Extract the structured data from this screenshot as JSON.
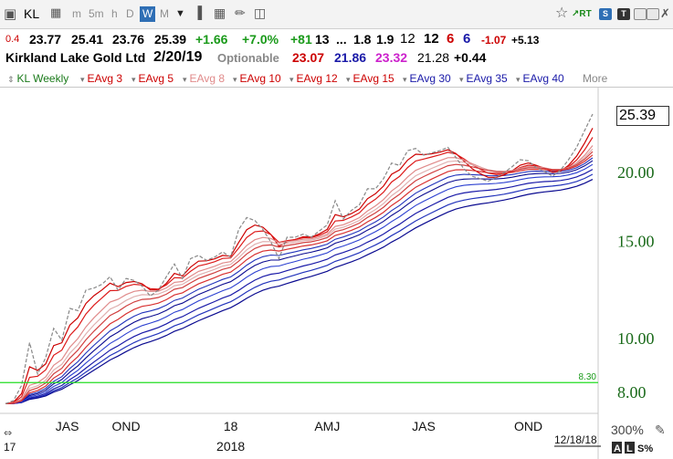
{
  "toolbar": {
    "symbol": "KL",
    "periods": [
      "m",
      "5m",
      "h",
      "D",
      "W",
      "M"
    ],
    "active_period": "W",
    "right_icons": [
      "star-icon",
      "rt-icon",
      "s-icon",
      "t-icon",
      "minimize-icon",
      "maximize-icon",
      "close-icon"
    ]
  },
  "quote": {
    "change_small": "0.4",
    "open": "23.77",
    "high": "25.41",
    "low": "23.76",
    "close": "25.39",
    "change": "+1.66",
    "change_pct": "+7.0%",
    "rank_change": "+81",
    "v1": "13",
    "v2": "...",
    "v3": "1.8",
    "v4": "1.9",
    "v5": "12",
    "v6": "12",
    "v7": "6",
    "v8": "6",
    "v9": "-1.07",
    "v10": "+5.13"
  },
  "info": {
    "company": "Kirkland Lake Gold Ltd",
    "date": "2/20/19",
    "optionable": "Optionable",
    "p1": "23.07",
    "p2": "21.86",
    "p3": "23.32",
    "p4": "21.28",
    "p5": "+0.44"
  },
  "legend": {
    "items": [
      "KL Weekly",
      "EAvg 3",
      "EAvg 5",
      "EAvg 8",
      "EAvg 10",
      "EAvg 12",
      "EAvg 15",
      "EAvg 30",
      "EAvg 35",
      "EAvg 40",
      "More"
    ]
  },
  "chart_data": {
    "type": "line",
    "scale": "log",
    "ylim": [
      7.3,
      27.5
    ],
    "y_ticks": [
      "20.00",
      "15.00",
      "10.00",
      "8.00"
    ],
    "y_tick_values": [
      20,
      15,
      10,
      8
    ],
    "last_price": "25.39",
    "horizontal_line": {
      "value": 8.3,
      "label": "8.30",
      "color": "#22dd22"
    },
    "x_tick_labels": [
      "JAS",
      "OND",
      "18",
      "AMJ",
      "JAS",
      "OND"
    ],
    "x_tick_index": [
      2,
      15,
      28,
      40,
      52,
      65
    ],
    "year_label": "2018",
    "year_label_index": 28,
    "left_edge_label": "17",
    "date_label": "12/18/18",
    "zoom_label": "300%",
    "scale_buttons": [
      "A",
      "L",
      "S%"
    ],
    "colors": {
      "price": "#888888",
      "short": [
        "#cc0000",
        "#dd1a1a",
        "#e08a8a",
        "#e0b0b0",
        "#d04040",
        "#d83030"
      ],
      "long": [
        "#1a1aa8",
        "#2233bb",
        "#0a0a90",
        "#2b3fd0"
      ]
    },
    "weekly_close": [
      7.6,
      7.7,
      8.2,
      9.8,
      8.6,
      9.2,
      10.4,
      9.9,
      11.3,
      11.2,
      12.2,
      12.3,
      12.5,
      12.9,
      12.2,
      12.8,
      12.7,
      12.4,
      11.9,
      12.2,
      12.9,
      13.6,
      12.8,
      13.9,
      14.1,
      13.8,
      14.0,
      14.3,
      14.0,
      15.7,
      16.5,
      16.3,
      15.7,
      14.9,
      13.9,
      15.2,
      15.2,
      15.4,
      15.2,
      15.6,
      16.0,
      17.7,
      16.4,
      17.0,
      17.4,
      18.6,
      18.6,
      19.4,
      20.7,
      20.5,
      21.8,
      22.0,
      21.4,
      21.6,
      21.8,
      22.1,
      21.2,
      20.2,
      19.6,
      19.4,
      19.2,
      19.5,
      19.9,
      20.4,
      21.0,
      20.9,
      20.3,
      20.0,
      19.6,
      20.1,
      21.0,
      22.1,
      23.7,
      25.39
    ],
    "series": [
      {
        "name": "EAvg 3",
        "period": 3
      },
      {
        "name": "EAvg 5",
        "period": 5
      },
      {
        "name": "EAvg 8",
        "period": 8
      },
      {
        "name": "EAvg 10",
        "period": 10
      },
      {
        "name": "EAvg 12",
        "period": 12
      },
      {
        "name": "EAvg 15",
        "period": 15
      },
      {
        "name": "EAvg 30",
        "period": 30
      },
      {
        "name": "EAvg 35",
        "period": 35
      },
      {
        "name": "EAvg 40",
        "period": 40
      }
    ]
  }
}
